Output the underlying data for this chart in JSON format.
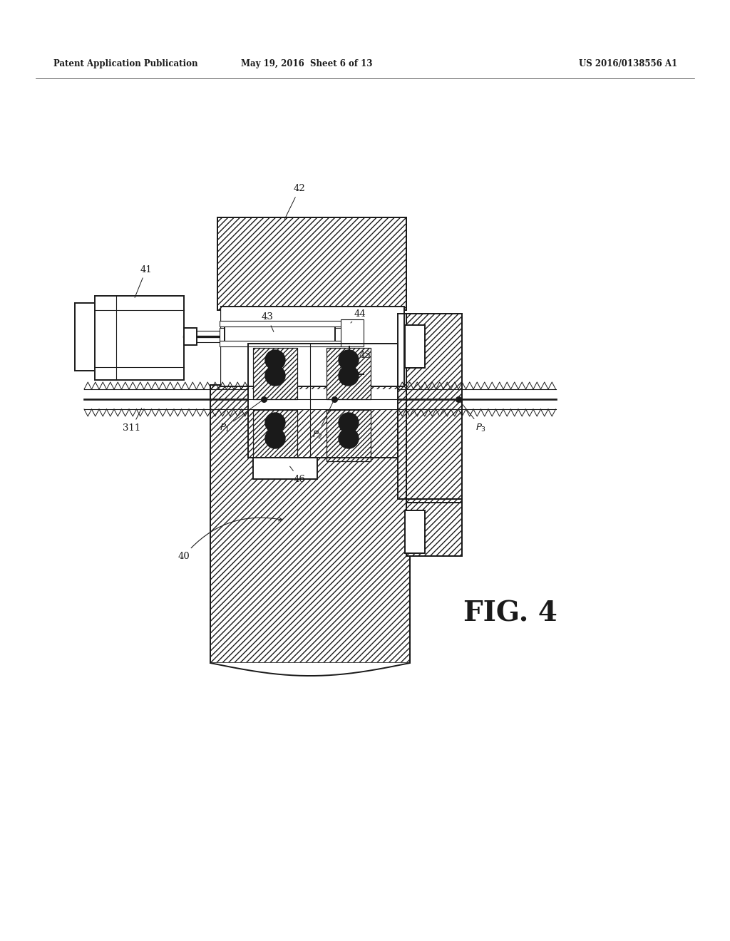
{
  "bg_color": "#ffffff",
  "lc": "#1a1a1a",
  "header_left": "Patent Application Publication",
  "header_mid": "May 19, 2016  Sheet 6 of 13",
  "header_right": "US 2016/0138556 A1",
  "fig_label": "FIG. 4",
  "lw_main": 1.4,
  "lw_thin": 0.8,
  "lw_hair": 0.5,
  "hatch_density": "////",
  "label_fs": 9.5
}
